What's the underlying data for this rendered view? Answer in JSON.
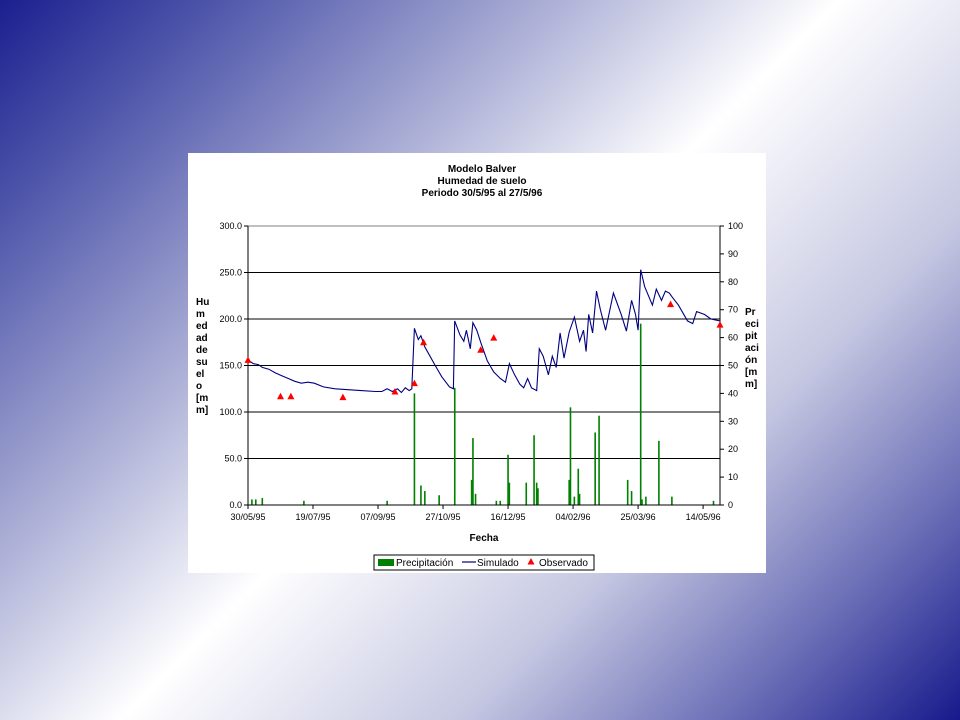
{
  "chart_data": {
    "type": "line",
    "title": [
      "Modelo Balver",
      "Humedad de suelo",
      "Periodo 30/5/95 al 27/5/96"
    ],
    "xlabel": "Fecha",
    "ylabel": [
      "Hu",
      "m",
      "ed",
      "ad",
      "de",
      "su",
      "el",
      "o",
      "[m",
      "m]"
    ],
    "ylabel_right": [
      "Pr",
      "eci",
      "pit",
      "aci",
      "ón",
      "[m",
      "m]"
    ],
    "xlim": [
      "1995-05-30",
      "1996-05-27"
    ],
    "ylim": [
      0,
      300
    ],
    "ylim_right": [
      0,
      100
    ],
    "x_ticks": [
      "30/05/95",
      "19/07/95",
      "07/09/95",
      "27/10/95",
      "16/12/95",
      "04/02/96",
      "25/03/96",
      "14/05/96"
    ],
    "y_ticks": [
      "0.0",
      "50.0",
      "100.0",
      "150.0",
      "200.0",
      "250.0",
      "300.0"
    ],
    "y_ticks_right": [
      "0",
      "10",
      "20",
      "30",
      "40",
      "50",
      "60",
      "70",
      "80",
      "90",
      "100"
    ],
    "grid": "horizontal major gridlines",
    "legend": {
      "placement": "bottom",
      "entries": [
        "Precipitación",
        "Simulado",
        "Observado"
      ]
    },
    "colors": {
      "precipitation": "#007f00",
      "simulated": "#000080",
      "observed": "#ff0000"
    },
    "series": [
      {
        "name": "Simulado",
        "kind": "line",
        "axis": "left",
        "points": [
          [
            "1995-05-30",
            156
          ],
          [
            "1995-06-03",
            152
          ],
          [
            "1995-06-07",
            151
          ],
          [
            "1995-06-10",
            148
          ],
          [
            "1995-06-15",
            146
          ],
          [
            "1995-06-20",
            142
          ],
          [
            "1995-06-25",
            139
          ],
          [
            "1995-06-30",
            136
          ],
          [
            "1995-07-05",
            133
          ],
          [
            "1995-07-10",
            131
          ],
          [
            "1995-07-15",
            132
          ],
          [
            "1995-07-20",
            131
          ],
          [
            "1995-07-27",
            127
          ],
          [
            "1995-08-05",
            125
          ],
          [
            "1995-08-15",
            124
          ],
          [
            "1995-08-25",
            123
          ],
          [
            "1995-09-05",
            122
          ],
          [
            "1995-09-10",
            122
          ],
          [
            "1995-09-14",
            125
          ],
          [
            "1995-09-18",
            122
          ],
          [
            "1995-09-22",
            125
          ],
          [
            "1995-09-25",
            121
          ],
          [
            "1995-09-28",
            126
          ],
          [
            "1995-10-01",
            123
          ],
          [
            "1995-10-03",
            125
          ],
          [
            "1995-10-05",
            190
          ],
          [
            "1995-10-08",
            178
          ],
          [
            "1995-10-10",
            182
          ],
          [
            "1995-10-13",
            170
          ],
          [
            "1995-10-17",
            160
          ],
          [
            "1995-10-21",
            150
          ],
          [
            "1995-10-26",
            138
          ],
          [
            "1995-11-01",
            127
          ],
          [
            "1995-11-04",
            125
          ],
          [
            "1995-11-05",
            198
          ],
          [
            "1995-11-09",
            183
          ],
          [
            "1995-11-12",
            176
          ],
          [
            "1995-11-14",
            188
          ],
          [
            "1995-11-17",
            168
          ],
          [
            "1995-11-19",
            196
          ],
          [
            "1995-11-22",
            188
          ],
          [
            "1995-11-25",
            175
          ],
          [
            "1995-11-30",
            155
          ],
          [
            "1995-12-05",
            143
          ],
          [
            "1995-12-10",
            136
          ],
          [
            "1995-12-14",
            132
          ],
          [
            "1995-12-17",
            152
          ],
          [
            "1995-12-21",
            140
          ],
          [
            "1995-12-25",
            130
          ],
          [
            "1995-12-28",
            126
          ],
          [
            "1995-12-31",
            136
          ],
          [
            "1996-01-03",
            126
          ],
          [
            "1996-01-07",
            123
          ],
          [
            "1996-01-09",
            168
          ],
          [
            "1996-01-12",
            160
          ],
          [
            "1996-01-16",
            140
          ],
          [
            "1996-01-19",
            160
          ],
          [
            "1996-01-22",
            148
          ],
          [
            "1996-01-25",
            185
          ],
          [
            "1996-01-28",
            158
          ],
          [
            "1996-02-01",
            186
          ],
          [
            "1996-02-05",
            202
          ],
          [
            "1996-02-09",
            176
          ],
          [
            "1996-02-12",
            188
          ],
          [
            "1996-02-14",
            165
          ],
          [
            "1996-02-16",
            205
          ],
          [
            "1996-02-19",
            185
          ],
          [
            "1996-02-22",
            230
          ],
          [
            "1996-02-25",
            210
          ],
          [
            "1996-02-29",
            188
          ],
          [
            "1996-03-06",
            228
          ],
          [
            "1996-03-12",
            205
          ],
          [
            "1996-03-16",
            187
          ],
          [
            "1996-03-20",
            220
          ],
          [
            "1996-03-23",
            205
          ],
          [
            "1996-03-25",
            188
          ],
          [
            "1996-03-27",
            253
          ],
          [
            "1996-03-30",
            235
          ],
          [
            "1996-04-02",
            225
          ],
          [
            "1996-04-05",
            215
          ],
          [
            "1996-04-08",
            232
          ],
          [
            "1996-04-12",
            220
          ],
          [
            "1996-04-15",
            230
          ],
          [
            "1996-04-18",
            228
          ],
          [
            "1996-04-20",
            224
          ],
          [
            "1996-04-25",
            215
          ],
          [
            "1996-05-02",
            198
          ],
          [
            "1996-05-06",
            195
          ],
          [
            "1996-05-09",
            208
          ],
          [
            "1996-05-15",
            205
          ],
          [
            "1996-05-20",
            200
          ],
          [
            "1996-05-27",
            198
          ]
        ]
      },
      {
        "name": "Observado",
        "kind": "scatter",
        "axis": "left",
        "points": [
          [
            "1995-05-30",
            156
          ],
          [
            "1995-06-24",
            117
          ],
          [
            "1995-07-02",
            117
          ],
          [
            "1995-08-11",
            116
          ],
          [
            "1995-09-20",
            122
          ],
          [
            "1995-10-05",
            131
          ],
          [
            "1995-10-12",
            175
          ],
          [
            "1995-11-25",
            167
          ],
          [
            "1995-12-05",
            180
          ],
          [
            "1996-04-19",
            216
          ],
          [
            "1996-05-27",
            194
          ]
        ]
      },
      {
        "name": "Precipitación",
        "kind": "bar",
        "axis": "right",
        "points": [
          [
            "1995-06-02",
            2
          ],
          [
            "1995-06-05",
            2
          ],
          [
            "1995-06-10",
            2.5
          ],
          [
            "1995-07-12",
            1.5
          ],
          [
            "1995-09-14",
            1.5
          ],
          [
            "1995-10-05",
            40
          ],
          [
            "1995-10-10",
            7
          ],
          [
            "1995-10-13",
            5
          ],
          [
            "1995-10-24",
            3.5
          ],
          [
            "1995-11-05",
            42
          ],
          [
            "1995-11-18",
            9
          ],
          [
            "1995-11-19",
            24
          ],
          [
            "1995-11-21",
            4
          ],
          [
            "1995-12-07",
            1.5
          ],
          [
            "1995-12-10",
            1.5
          ],
          [
            "1995-12-16",
            18
          ],
          [
            "1995-12-17",
            8
          ],
          [
            "1995-12-30",
            8
          ],
          [
            "1996-01-05",
            25
          ],
          [
            "1996-01-07",
            8
          ],
          [
            "1996-01-08",
            6
          ],
          [
            "1996-02-01",
            9
          ],
          [
            "1996-02-02",
            35
          ],
          [
            "1996-02-05",
            3
          ],
          [
            "1996-02-08",
            13
          ],
          [
            "1996-02-09",
            4
          ],
          [
            "1996-02-21",
            26
          ],
          [
            "1996-02-24",
            32
          ],
          [
            "1996-03-17",
            9
          ],
          [
            "1996-03-20",
            5
          ],
          [
            "1996-03-27",
            65
          ],
          [
            "1996-03-28",
            2
          ],
          [
            "1996-03-31",
            3
          ],
          [
            "1996-04-10",
            23
          ],
          [
            "1996-04-20",
            3
          ],
          [
            "1996-05-22",
            1.5
          ]
        ]
      }
    ]
  }
}
